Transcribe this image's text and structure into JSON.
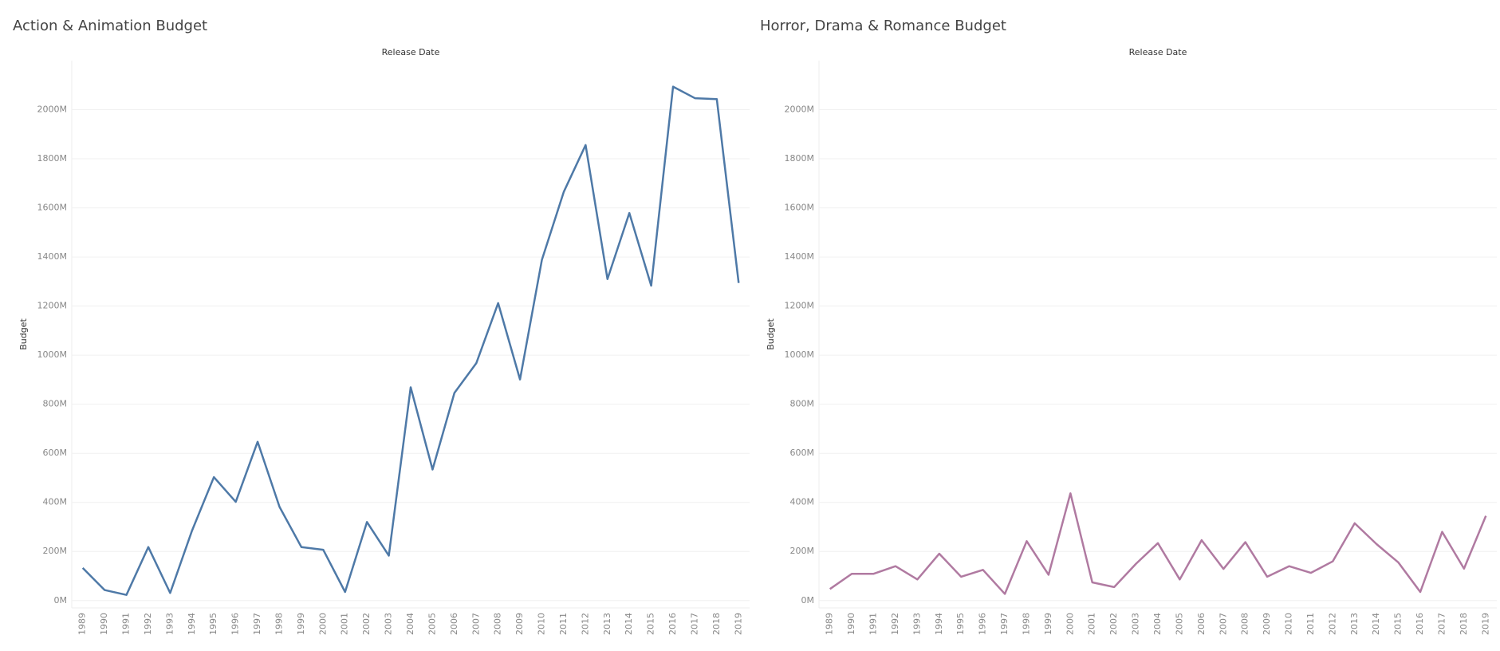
{
  "chart_data": [
    {
      "type": "line",
      "title": "Action & Animation Budget",
      "x_label": "Release Date",
      "y_label": "Budget",
      "x": [
        1989,
        1990,
        1991,
        1992,
        1993,
        1994,
        1995,
        1996,
        1997,
        1998,
        1999,
        2000,
        2001,
        2002,
        2003,
        2004,
        2005,
        2006,
        2007,
        2008,
        2009,
        2010,
        2011,
        2012,
        2013,
        2014,
        2015,
        2016,
        2017,
        2018,
        2019
      ],
      "xlim": [
        1988.5,
        2019.5
      ],
      "series": [
        {
          "name": "Budget",
          "color": "#4e79a7",
          "values": [
            133,
            43,
            23,
            218,
            31,
            285,
            503,
            402,
            647,
            382,
            218,
            207,
            35,
            320,
            183,
            869,
            534,
            846,
            967,
            1212,
            901,
            1388,
            1665,
            1856,
            1310,
            1579,
            1283,
            2094,
            2047,
            2043,
            1294
          ]
        }
      ],
      "ylim": [
        -30,
        2200
      ],
      "yticks": [
        {
          "value": 0,
          "label": "0M"
        },
        {
          "value": 200,
          "label": "200M"
        },
        {
          "value": 400,
          "label": "400M"
        },
        {
          "value": 600,
          "label": "600M"
        },
        {
          "value": 800,
          "label": "800M"
        },
        {
          "value": 1000,
          "label": "1000M"
        },
        {
          "value": 1200,
          "label": "1200M"
        },
        {
          "value": 1400,
          "label": "1400M"
        },
        {
          "value": 1600,
          "label": "1600M"
        },
        {
          "value": 1800,
          "label": "1800M"
        },
        {
          "value": 2000,
          "label": "2000M"
        }
      ],
      "grid": true
    },
    {
      "type": "line",
      "title": "Horror, Drama & Romance Budget",
      "x_label": "Release Date",
      "y_label": "Budget",
      "x": [
        1989,
        1990,
        1991,
        1992,
        1993,
        1994,
        1995,
        1996,
        1997,
        1998,
        1999,
        2000,
        2001,
        2002,
        2003,
        2004,
        2005,
        2006,
        2007,
        2008,
        2009,
        2010,
        2011,
        2012,
        2013,
        2014,
        2015,
        2016,
        2017,
        2018,
        2019
      ],
      "xlim": [
        1988.5,
        2019.5
      ],
      "series": [
        {
          "name": "Budget",
          "color": "#b07aa1",
          "values": [
            47,
            109,
            109,
            140,
            86,
            191,
            97,
            125,
            27,
            242,
            105,
            437,
            74,
            55,
            150,
            234,
            86,
            246,
            129,
            238,
            97,
            140,
            113,
            160,
            315,
            230,
            155,
            35,
            280,
            130,
            345
          ]
        }
      ],
      "ylim": [
        -30,
        2200
      ],
      "yticks": [
        {
          "value": 0,
          "label": "0M"
        },
        {
          "value": 200,
          "label": "200M"
        },
        {
          "value": 400,
          "label": "400M"
        },
        {
          "value": 600,
          "label": "600M"
        },
        {
          "value": 800,
          "label": "800M"
        },
        {
          "value": 1000,
          "label": "1000M"
        },
        {
          "value": 1200,
          "label": "1200M"
        },
        {
          "value": 1400,
          "label": "1400M"
        },
        {
          "value": 1600,
          "label": "1600M"
        },
        {
          "value": 1800,
          "label": "1800M"
        },
        {
          "value": 2000,
          "label": "2000M"
        }
      ],
      "grid": true
    }
  ]
}
